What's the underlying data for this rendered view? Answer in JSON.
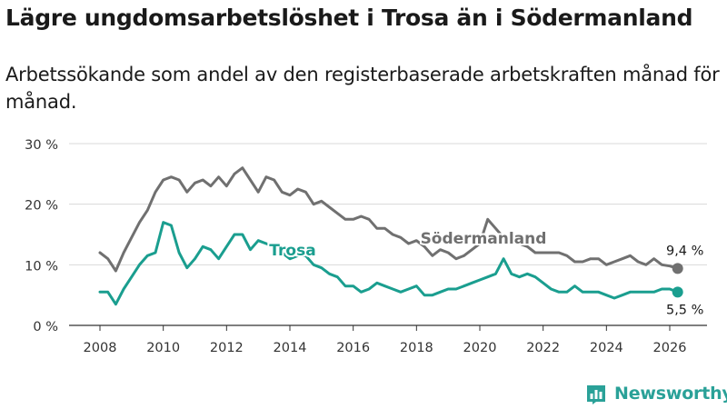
{
  "title": "Lägre ungdomsarbetslöshet i Trosa än i Södermanland",
  "subtitle": "Arbetssökande som andel av den registerbaserade arbetskraften månad för månad.",
  "brand": {
    "name": "Newsworthy",
    "icon": "newsworthy-logo-icon"
  },
  "colors": {
    "trosa": "#1a9e8f",
    "sodermanland": "#707070",
    "grid": "#d9d9d9",
    "text": "#1a1a1a"
  },
  "chart_data": {
    "type": "line",
    "xlim": [
      2008,
      2026.25
    ],
    "ylim": [
      0,
      30
    ],
    "x_ticks": [
      2008,
      2010,
      2012,
      2014,
      2016,
      2018,
      2020,
      2022,
      2024,
      2026
    ],
    "x_tick_labels": [
      "2008",
      "2010",
      "2012",
      "2014",
      "2016",
      "2018",
      "2020",
      "2022",
      "2024",
      "2026"
    ],
    "y_ticks": [
      0,
      10,
      20,
      30
    ],
    "y_tick_labels": [
      "0 %",
      "10 %",
      "20 %",
      "30 %"
    ],
    "grid": true,
    "series": [
      {
        "name": "Södermanland",
        "label": "Södermanland",
        "color": "#707070",
        "end_label": "9,4 %",
        "x": [
          2008.0,
          2008.25,
          2008.5,
          2008.75,
          2009.0,
          2009.25,
          2009.5,
          2009.75,
          2010.0,
          2010.25,
          2010.5,
          2010.75,
          2011.0,
          2011.25,
          2011.5,
          2011.75,
          2012.0,
          2012.25,
          2012.5,
          2012.75,
          2013.0,
          2013.25,
          2013.5,
          2013.75,
          2014.0,
          2014.25,
          2014.5,
          2014.75,
          2015.0,
          2015.25,
          2015.5,
          2015.75,
          2016.0,
          2016.25,
          2016.5,
          2016.75,
          2017.0,
          2017.25,
          2017.5,
          2017.75,
          2018.0,
          2018.25,
          2018.5,
          2018.75,
          2019.0,
          2019.25,
          2019.5,
          2019.75,
          2020.0,
          2020.25,
          2020.5,
          2020.75,
          2021.0,
          2021.25,
          2021.5,
          2021.75,
          2022.0,
          2022.25,
          2022.5,
          2022.75,
          2023.0,
          2023.25,
          2023.5,
          2023.75,
          2024.0,
          2024.25,
          2024.5,
          2024.75,
          2025.0,
          2025.25,
          2025.5,
          2025.75,
          2026.0,
          2026.25
        ],
        "values": [
          12.0,
          11.0,
          9.0,
          12.0,
          14.5,
          17.0,
          19.0,
          22.0,
          24.0,
          24.5,
          24.0,
          22.0,
          23.5,
          24.0,
          23.0,
          24.5,
          23.0,
          25.0,
          26.0,
          24.0,
          22.0,
          24.5,
          24.0,
          22.0,
          21.5,
          22.5,
          22.0,
          20.0,
          20.5,
          19.5,
          18.5,
          17.5,
          17.5,
          18.0,
          17.5,
          16.0,
          16.0,
          15.0,
          14.5,
          13.5,
          14.0,
          13.0,
          11.5,
          12.5,
          12.0,
          11.0,
          11.5,
          12.5,
          13.5,
          17.5,
          16.0,
          14.5,
          14.5,
          13.5,
          13.0,
          12.0,
          12.0,
          12.0,
          12.0,
          11.5,
          10.5,
          10.5,
          11.0,
          11.0,
          10.0,
          10.5,
          11.0,
          11.5,
          10.5,
          10.0,
          11.0,
          10.0,
          9.8,
          9.4
        ]
      },
      {
        "name": "Trosa",
        "label": "Trosa",
        "color": "#1a9e8f",
        "end_label": "5,5 %",
        "x": [
          2008.0,
          2008.25,
          2008.5,
          2008.75,
          2009.0,
          2009.25,
          2009.5,
          2009.75,
          2010.0,
          2010.25,
          2010.5,
          2010.75,
          2011.0,
          2011.25,
          2011.5,
          2011.75,
          2012.0,
          2012.25,
          2012.5,
          2012.75,
          2013.0,
          2013.25,
          2013.5,
          2013.75,
          2014.0,
          2014.25,
          2014.5,
          2014.75,
          2015.0,
          2015.25,
          2015.5,
          2015.75,
          2016.0,
          2016.25,
          2016.5,
          2016.75,
          2017.0,
          2017.25,
          2017.5,
          2017.75,
          2018.0,
          2018.25,
          2018.5,
          2018.75,
          2019.0,
          2019.25,
          2019.5,
          2019.75,
          2020.0,
          2020.25,
          2020.5,
          2020.75,
          2021.0,
          2021.25,
          2021.5,
          2021.75,
          2022.0,
          2022.25,
          2022.5,
          2022.75,
          2023.0,
          2023.25,
          2023.5,
          2023.75,
          2024.0,
          2024.25,
          2024.5,
          2024.75,
          2025.0,
          2025.25,
          2025.5,
          2025.75,
          2026.0,
          2026.25
        ],
        "values": [
          5.5,
          5.5,
          3.5,
          6.0,
          8.0,
          10.0,
          11.5,
          12.0,
          17.0,
          16.5,
          12.0,
          9.5,
          11.0,
          13.0,
          12.5,
          11.0,
          13.0,
          15.0,
          15.0,
          12.5,
          14.0,
          13.5,
          13.0,
          12.0,
          11.0,
          11.5,
          11.5,
          10.0,
          9.5,
          8.5,
          8.0,
          6.5,
          6.5,
          5.5,
          6.0,
          7.0,
          6.5,
          6.0,
          5.5,
          6.0,
          6.5,
          5.0,
          5.0,
          5.5,
          6.0,
          6.0,
          6.5,
          7.0,
          7.5,
          8.0,
          8.5,
          11.0,
          8.5,
          8.0,
          8.5,
          8.0,
          7.0,
          6.0,
          5.5,
          5.5,
          6.5,
          5.5,
          5.5,
          5.5,
          5.0,
          4.5,
          5.0,
          5.5,
          5.5,
          5.5,
          5.5,
          6.0,
          6.0,
          5.5
        ]
      }
    ]
  }
}
